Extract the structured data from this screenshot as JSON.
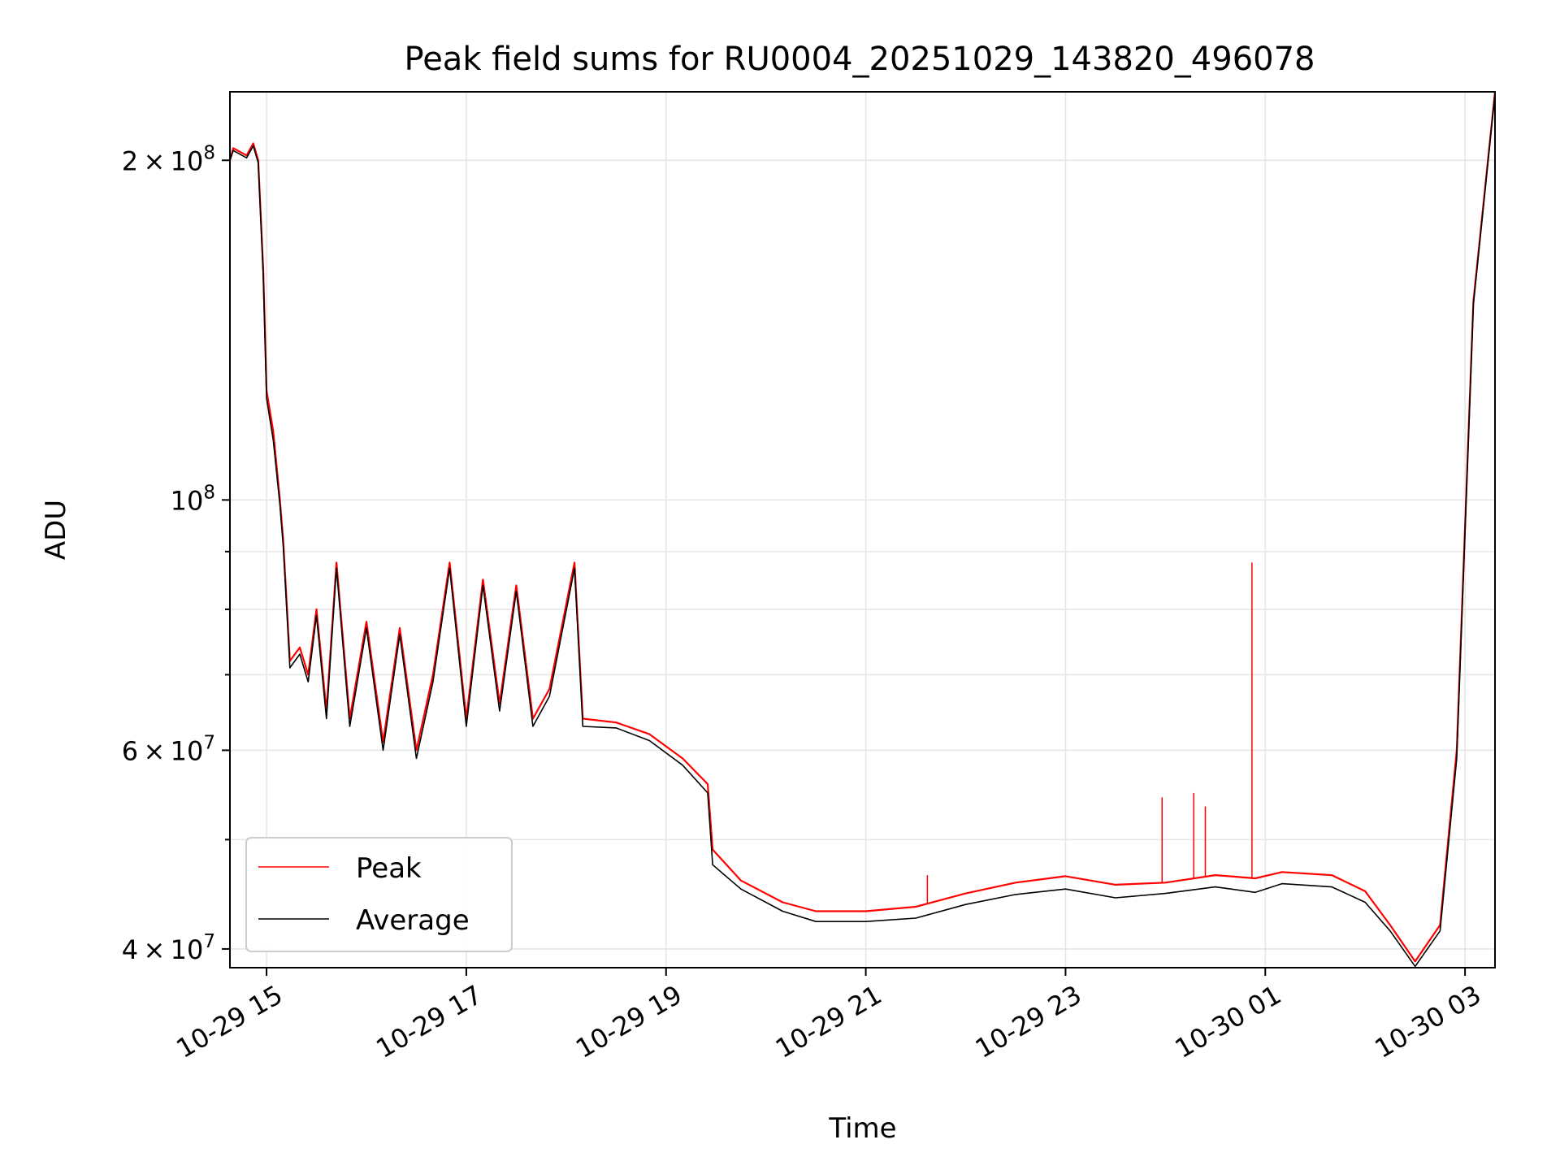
{
  "chart_data": {
    "type": "line",
    "title": "Peak field sums for RU0004_20251029_143820_496078",
    "xlabel": "Time",
    "ylabel": "ADU",
    "yscale": "log",
    "xlim": [
      "2025-10-29 14:38",
      "2025-10-30 03:18"
    ],
    "ylim": [
      38500000,
      230000000
    ],
    "x_ticks": [
      "10-29 15",
      "10-29 17",
      "10-29 19",
      "10-29 21",
      "10-29 23",
      "10-30 01",
      "10-30 03"
    ],
    "y_ticks": [
      {
        "mantissa": "2",
        "exponent": "8",
        "value": 200000000
      },
      {
        "mantissa": "",
        "exponent": "8",
        "value": 100000000
      },
      {
        "mantissa": "6",
        "exponent": "7",
        "value": 60000000
      },
      {
        "mantissa": "4",
        "exponent": "7",
        "value": 40000000
      }
    ],
    "grid": true,
    "legend_position": "lower-left",
    "series": [
      {
        "name": "Peak",
        "color": "#ff0000",
        "points": [
          [
            "2025-10-29 14:38",
            200000000
          ],
          [
            "2025-10-29 14:40",
            205000000
          ],
          [
            "2025-10-29 14:48",
            202000000
          ],
          [
            "2025-10-29 14:52",
            207000000
          ],
          [
            "2025-10-29 14:55",
            200000000
          ],
          [
            "2025-10-29 14:58",
            160000000
          ],
          [
            "2025-10-29 15:00",
            125000000
          ],
          [
            "2025-10-29 15:04",
            115000000
          ],
          [
            "2025-10-29 15:08",
            100000000
          ],
          [
            "2025-10-29 15:10",
            92000000
          ],
          [
            "2025-10-29 15:14",
            72000000
          ],
          [
            "2025-10-29 15:20",
            74000000
          ],
          [
            "2025-10-29 15:25",
            70000000
          ],
          [
            "2025-10-29 15:30",
            80000000
          ],
          [
            "2025-10-29 15:36",
            65000000
          ],
          [
            "2025-10-29 15:42",
            88000000
          ],
          [
            "2025-10-29 15:50",
            64000000
          ],
          [
            "2025-10-29 16:00",
            78000000
          ],
          [
            "2025-10-29 16:10",
            61000000
          ],
          [
            "2025-10-29 16:20",
            77000000
          ],
          [
            "2025-10-29 16:30",
            60000000
          ],
          [
            "2025-10-29 16:40",
            70000000
          ],
          [
            "2025-10-29 16:50",
            88000000
          ],
          [
            "2025-10-29 17:00",
            64000000
          ],
          [
            "2025-10-29 17:10",
            85000000
          ],
          [
            "2025-10-29 17:20",
            66000000
          ],
          [
            "2025-10-29 17:30",
            84000000
          ],
          [
            "2025-10-29 17:40",
            64000000
          ],
          [
            "2025-10-29 17:50",
            68000000
          ],
          [
            "2025-10-29 18:05",
            88000000
          ],
          [
            "2025-10-29 18:10",
            64000000
          ],
          [
            "2025-10-29 18:30",
            63500000
          ],
          [
            "2025-10-29 18:50",
            62000000
          ],
          [
            "2025-10-29 19:10",
            59000000
          ],
          [
            "2025-10-29 19:25",
            56000000
          ],
          [
            "2025-10-29 19:28",
            49000000
          ],
          [
            "2025-10-29 19:45",
            46000000
          ],
          [
            "2025-10-29 20:10",
            44000000
          ],
          [
            "2025-10-29 20:30",
            43200000
          ],
          [
            "2025-10-29 21:00",
            43200000
          ],
          [
            "2025-10-29 21:30",
            43600000
          ],
          [
            "2025-10-29 22:00",
            44800000
          ],
          [
            "2025-10-29 22:30",
            45800000
          ],
          [
            "2025-10-29 23:00",
            46400000
          ],
          [
            "2025-10-29 23:30",
            45600000
          ],
          [
            "2025-10-30 00:00",
            45800000
          ],
          [
            "2025-10-30 00:30",
            46500000
          ],
          [
            "2025-10-30 00:54",
            46200000
          ],
          [
            "2025-10-30 01:10",
            46800000
          ],
          [
            "2025-10-30 01:40",
            46500000
          ],
          [
            "2025-10-30 02:00",
            45000000
          ],
          [
            "2025-10-30 02:15",
            42000000
          ],
          [
            "2025-10-30 02:30",
            39000000
          ],
          [
            "2025-10-30 02:45",
            42000000
          ],
          [
            "2025-10-30 02:55",
            60000000
          ],
          [
            "2025-10-30 03:05",
            150000000
          ],
          [
            "2025-10-30 03:18",
            230000000
          ]
        ],
        "spikes": [
          [
            "2025-10-29 23:58",
            54500000
          ],
          [
            "2025-10-30 00:17",
            55000000
          ],
          [
            "2025-10-30 00:24",
            53500000
          ],
          [
            "2025-10-30 00:52",
            88000000
          ],
          [
            "2025-10-29 21:37",
            46500000
          ]
        ]
      },
      {
        "name": "Average",
        "color": "#000000",
        "points": [
          [
            "2025-10-29 14:38",
            200000000
          ],
          [
            "2025-10-29 14:40",
            204000000
          ],
          [
            "2025-10-29 14:48",
            201000000
          ],
          [
            "2025-10-29 14:52",
            206000000
          ],
          [
            "2025-10-29 14:55",
            199000000
          ],
          [
            "2025-10-29 14:58",
            158000000
          ],
          [
            "2025-10-29 15:00",
            123000000
          ],
          [
            "2025-10-29 15:04",
            113000000
          ],
          [
            "2025-10-29 15:08",
            99000000
          ],
          [
            "2025-10-29 15:10",
            91000000
          ],
          [
            "2025-10-29 15:14",
            71000000
          ],
          [
            "2025-10-29 15:20",
            73000000
          ],
          [
            "2025-10-29 15:25",
            69000000
          ],
          [
            "2025-10-29 15:30",
            79000000
          ],
          [
            "2025-10-29 15:36",
            64000000
          ],
          [
            "2025-10-29 15:42",
            87000000
          ],
          [
            "2025-10-29 15:50",
            63000000
          ],
          [
            "2025-10-29 16:00",
            77000000
          ],
          [
            "2025-10-29 16:10",
            60000000
          ],
          [
            "2025-10-29 16:20",
            76000000
          ],
          [
            "2025-10-29 16:30",
            59000000
          ],
          [
            "2025-10-29 16:40",
            69000000
          ],
          [
            "2025-10-29 16:50",
            87000000
          ],
          [
            "2025-10-29 17:00",
            63000000
          ],
          [
            "2025-10-29 17:10",
            84000000
          ],
          [
            "2025-10-29 17:20",
            65000000
          ],
          [
            "2025-10-29 17:30",
            83000000
          ],
          [
            "2025-10-29 17:40",
            63000000
          ],
          [
            "2025-10-29 17:50",
            67000000
          ],
          [
            "2025-10-29 18:05",
            87000000
          ],
          [
            "2025-10-29 18:10",
            63000000
          ],
          [
            "2025-10-29 18:30",
            62800000
          ],
          [
            "2025-10-29 18:50",
            61200000
          ],
          [
            "2025-10-29 19:10",
            58200000
          ],
          [
            "2025-10-29 19:25",
            55000000
          ],
          [
            "2025-10-29 19:28",
            47500000
          ],
          [
            "2025-10-29 19:45",
            45200000
          ],
          [
            "2025-10-29 20:10",
            43200000
          ],
          [
            "2025-10-29 20:30",
            42300000
          ],
          [
            "2025-10-29 21:00",
            42300000
          ],
          [
            "2025-10-29 21:30",
            42600000
          ],
          [
            "2025-10-29 22:00",
            43800000
          ],
          [
            "2025-10-29 22:30",
            44700000
          ],
          [
            "2025-10-29 23:00",
            45200000
          ],
          [
            "2025-10-29 23:30",
            44400000
          ],
          [
            "2025-10-30 00:00",
            44800000
          ],
          [
            "2025-10-30 00:30",
            45400000
          ],
          [
            "2025-10-30 00:54",
            44900000
          ],
          [
            "2025-10-30 01:10",
            45700000
          ],
          [
            "2025-10-30 01:40",
            45400000
          ],
          [
            "2025-10-30 02:00",
            44000000
          ],
          [
            "2025-10-30 02:15",
            41500000
          ],
          [
            "2025-10-30 02:30",
            38600000
          ],
          [
            "2025-10-30 02:45",
            41500000
          ],
          [
            "2025-10-30 02:55",
            59000000
          ],
          [
            "2025-10-30 03:05",
            149000000
          ],
          [
            "2025-10-30 03:18",
            229000000
          ]
        ]
      }
    ]
  }
}
